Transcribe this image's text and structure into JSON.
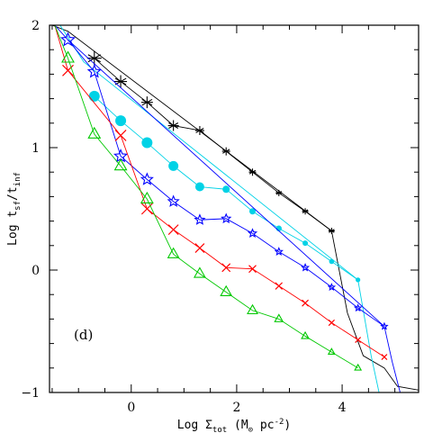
{
  "chart_data": {
    "type": "line",
    "title": "",
    "panel_label": "(d)",
    "xlabel": {
      "prefix": "Log Σ",
      "sub": "tot",
      "units_open": "(M",
      "units_sun": "⊙",
      "units_mid": " pc",
      "units_sup": "-2",
      "units_close": ")"
    },
    "ylabel": {
      "prefix": "Log t",
      "sub1": "sf",
      "mid": "/t",
      "sub2": "inf"
    },
    "xlim": [
      -1.55,
      5.45
    ],
    "ylim": [
      -1,
      2
    ],
    "xticks": [
      0,
      2,
      4
    ],
    "yticks": [
      -1,
      0,
      1,
      2
    ],
    "tick_labels_x": [
      "0",
      "2",
      "4"
    ],
    "tick_labels_y": [
      "−1",
      "0",
      "1",
      "2"
    ],
    "series": [
      {
        "color": "#000000",
        "marker": "asterisk",
        "x": [
          -0.7,
          -0.2,
          0.3,
          0.8,
          1.3,
          1.8,
          2.3,
          2.8,
          3.3,
          3.8
        ],
        "y": [
          1.73,
          1.54,
          1.37,
          1.18,
          1.14,
          0.97,
          0.8,
          0.63,
          0.48,
          0.32
        ],
        "marker_size": [
          8,
          7,
          6.5,
          6,
          5,
          4.5,
          4,
          3.5,
          3.5,
          3.5
        ],
        "extension_x": [
          -1.5,
          -1.2,
          3.8,
          4.1,
          4.4,
          4.8,
          5.05,
          5.45
        ],
        "extension_y": [
          2.0,
          1.95,
          0.32,
          -0.35,
          -0.7,
          -0.8,
          -0.95,
          -0.98
        ]
      },
      {
        "color": "#00d2e6",
        "marker": "filled-circle",
        "x": [
          -0.7,
          -0.2,
          0.3,
          0.8,
          1.3,
          1.8,
          2.3,
          2.8,
          3.3,
          3.8,
          4.3
        ],
        "y": [
          1.42,
          1.22,
          1.04,
          0.85,
          0.68,
          0.66,
          0.48,
          0.34,
          0.22,
          0.07,
          -0.08
        ],
        "marker_size": [
          6,
          6,
          6,
          5.5,
          5,
          4,
          3.5,
          3.2,
          3,
          2.8,
          2.6
        ],
        "extension_x": [
          -1.35,
          -0.9,
          4.3,
          4.55,
          4.7
        ],
        "extension_y": [
          2.0,
          1.7,
          -0.08,
          -0.7,
          -1.0
        ]
      },
      {
        "color": "#0000ff",
        "marker": "star",
        "x": [
          -1.2,
          -0.7,
          -0.2,
          0.3,
          0.8,
          1.3,
          1.8,
          2.3,
          2.8,
          3.3,
          3.8,
          4.3,
          4.8
        ],
        "y": [
          1.88,
          1.62,
          0.93,
          0.74,
          0.56,
          0.41,
          0.42,
          0.3,
          0.15,
          0.02,
          -0.14,
          -0.31,
          -0.46
        ],
        "marker_size": [
          7.5,
          7,
          7,
          6.5,
          6,
          5.5,
          5,
          4.5,
          4,
          3.8,
          3.5,
          3.5,
          3.5
        ],
        "extension_x": [
          -1.45,
          -1.2,
          4.8,
          4.95,
          5.1
        ],
        "extension_y": [
          2.0,
          1.88,
          -0.46,
          -0.75,
          -1.0
        ]
      },
      {
        "color": "#ff0000",
        "marker": "cross",
        "x": [
          -1.2,
          -0.2,
          0.3,
          0.8,
          1.3,
          1.8,
          2.3,
          2.8,
          3.3,
          3.8,
          4.3,
          4.8
        ],
        "y": [
          1.63,
          1.1,
          0.5,
          0.33,
          0.18,
          0.02,
          0.01,
          -0.13,
          -0.27,
          -0.43,
          -0.57,
          -0.71
        ],
        "marker_size": [
          6,
          6,
          6,
          5.5,
          5,
          4.5,
          4,
          3.8,
          3.5,
          3.2,
          3,
          3
        ],
        "extension_x": [
          -1.45,
          -1.2
        ],
        "extension_y": [
          2.0,
          1.63
        ]
      },
      {
        "color": "#00c800",
        "marker": "triangle",
        "x": [
          -1.2,
          -0.7,
          -0.2,
          0.3,
          0.8,
          1.3,
          1.8,
          2.3,
          2.8,
          3.3,
          3.8,
          4.3
        ],
        "y": [
          1.73,
          1.11,
          0.85,
          0.58,
          0.13,
          -0.03,
          -0.18,
          -0.33,
          -0.4,
          -0.54,
          -0.67,
          -0.8
        ],
        "marker_size": [
          6.5,
          6.5,
          6.5,
          6.5,
          6,
          6,
          6,
          5.5,
          4.5,
          4,
          3.5,
          3.5
        ],
        "extension_x": [
          -1.45,
          -1.2
        ],
        "extension_y": [
          2.0,
          1.73
        ]
      }
    ]
  }
}
